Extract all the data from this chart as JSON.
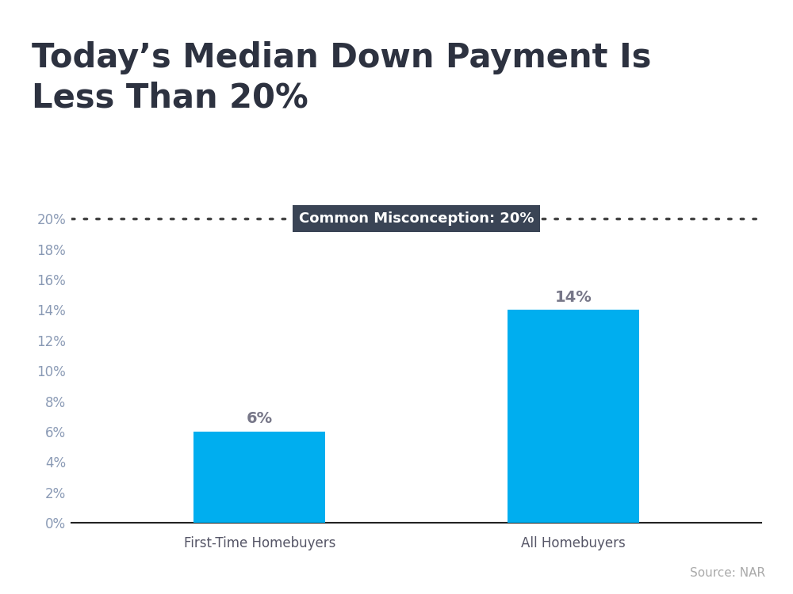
{
  "title_line1": "Today’s Median Down Payment Is",
  "title_line2": "Less Than 20%",
  "categories": [
    "First-Time Homebuyers",
    "All Homebuyers"
  ],
  "values": [
    6,
    14
  ],
  "bar_color": "#00AEEF",
  "bar_labels": [
    "6%",
    "14%"
  ],
  "misconception_value": 20,
  "misconception_label": "Common Misconception: 20%",
  "misconception_line_color": "#444444",
  "misconception_box_color": "#3a4455",
  "misconception_text_color": "#ffffff",
  "ytick_labels": [
    "0%",
    "2%",
    "4%",
    "6%",
    "8%",
    "10%",
    "12%",
    "14%",
    "16%",
    "18%",
    "20%"
  ],
  "ytick_values": [
    0,
    2,
    4,
    6,
    8,
    10,
    12,
    14,
    16,
    18,
    20
  ],
  "ylim": [
    0,
    21.5
  ],
  "ylabel_color": "#8a9ab5",
  "xlabel_color": "#555566",
  "source_text": "Source: NAR",
  "source_color": "#aaaaaa",
  "top_stripe_color": "#00AEEF",
  "background_color": "#ffffff",
  "title_color": "#2d3240",
  "bar_label_color": "#777788"
}
